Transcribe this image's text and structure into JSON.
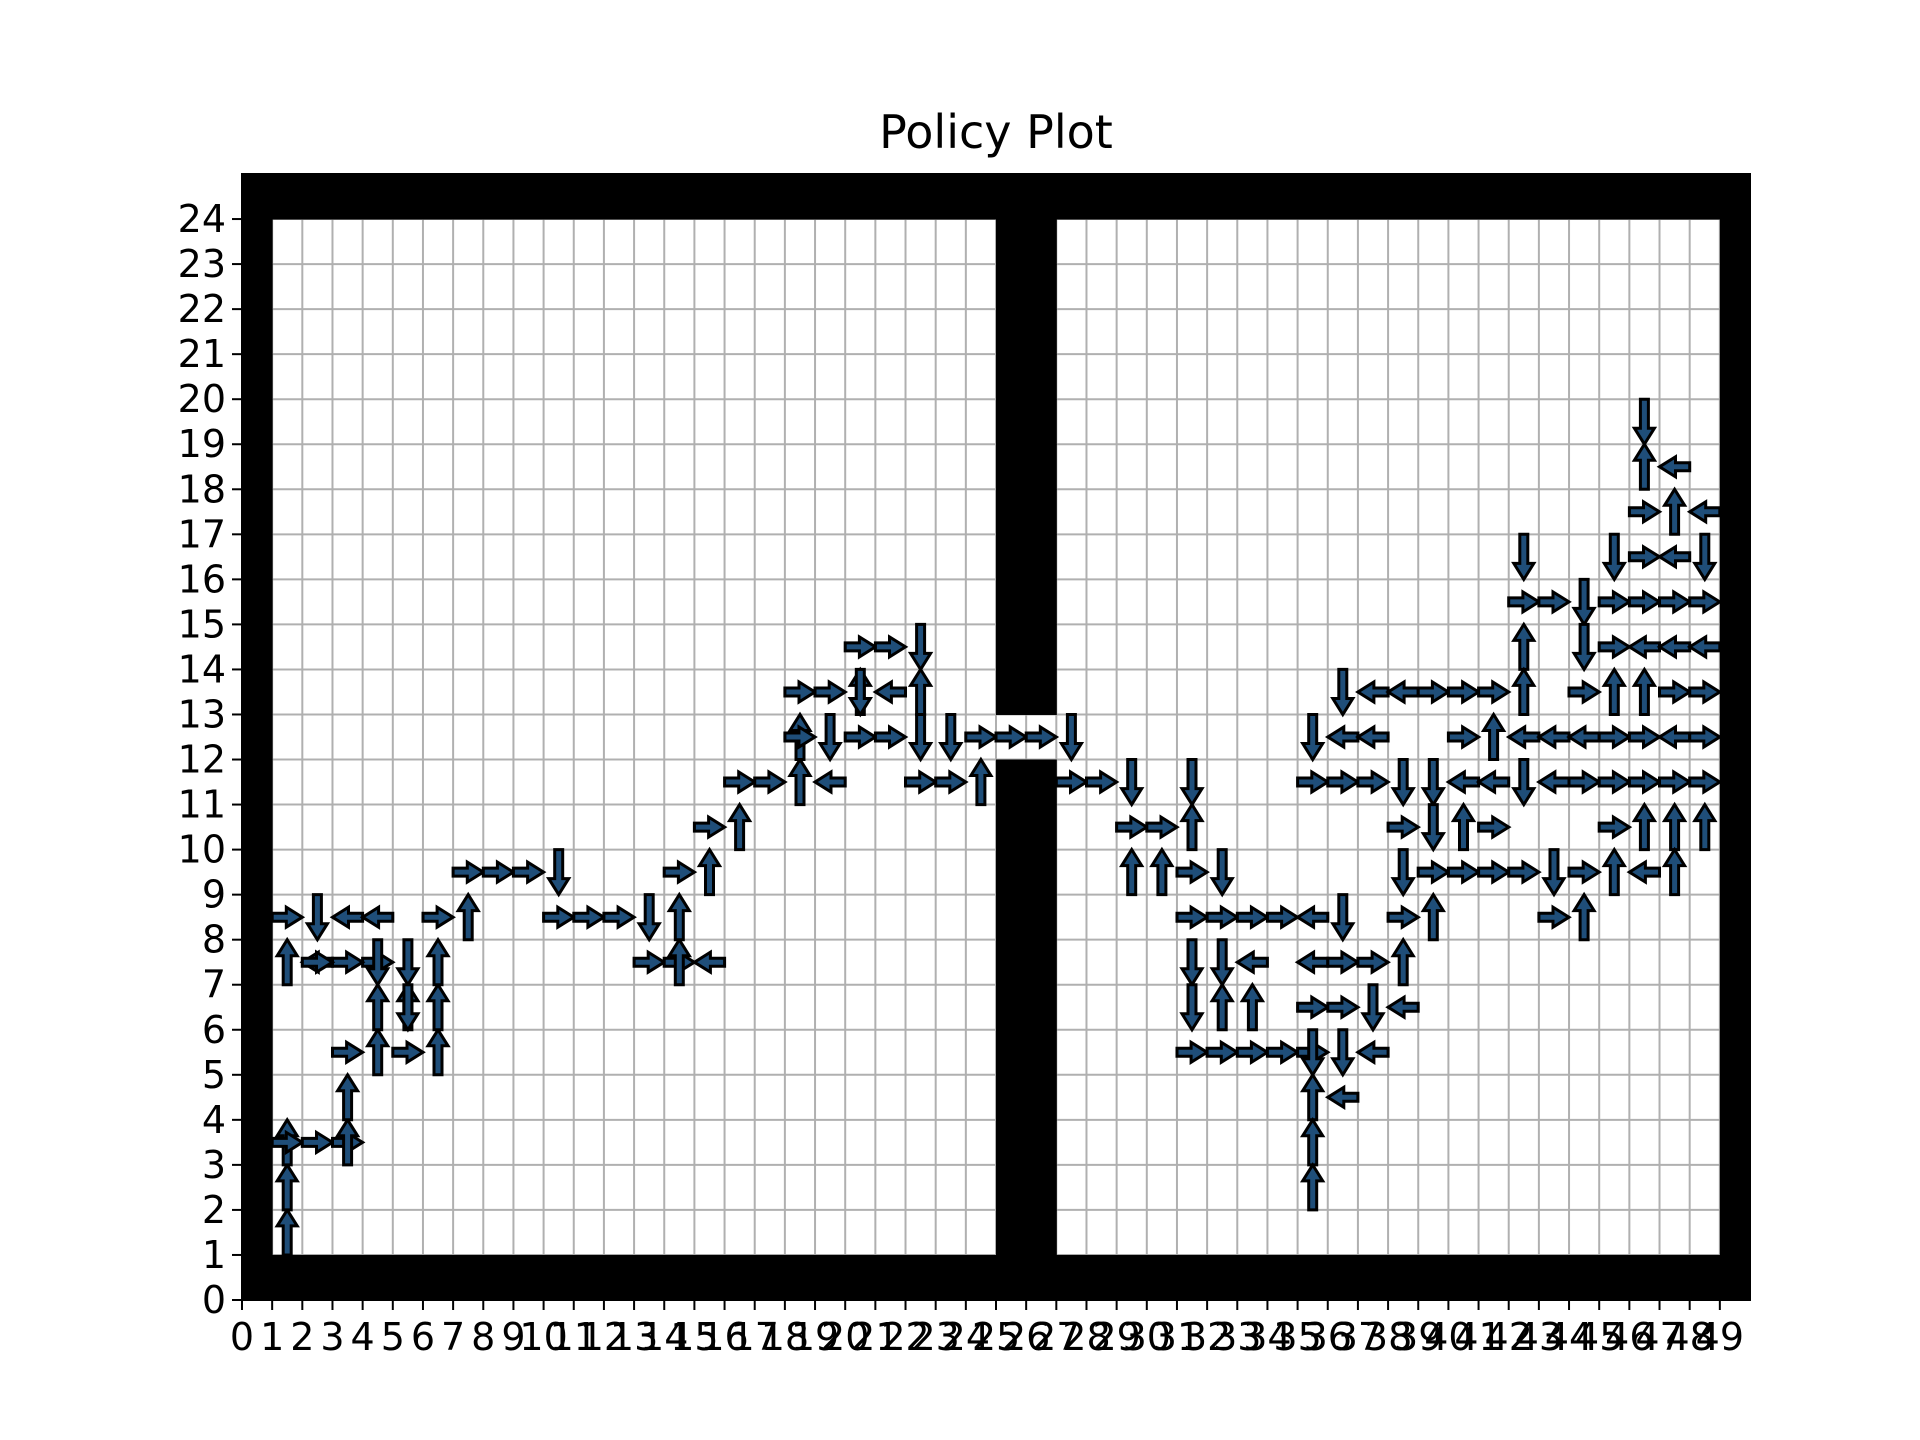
{
  "chart_data": {
    "type": "heatmap",
    "title": "Policy Plot",
    "xlabel": "",
    "ylabel": "",
    "xlim": [
      0,
      50
    ],
    "ylim": [
      0,
      25
    ],
    "x_ticks": [
      "0",
      "1",
      "2",
      "3",
      "4",
      "5",
      "6",
      "7",
      "8",
      "9",
      "10",
      "11",
      "12",
      "13",
      "14",
      "15",
      "16",
      "17",
      "18",
      "19",
      "20",
      "21",
      "22",
      "23",
      "24",
      "25",
      "26",
      "27",
      "28",
      "29",
      "30",
      "31",
      "32",
      "33",
      "34",
      "35",
      "36",
      "37",
      "38",
      "39",
      "40",
      "41",
      "42",
      "43",
      "44",
      "45",
      "46",
      "47",
      "48",
      "49"
    ],
    "y_ticks": [
      "0",
      "1",
      "2",
      "3",
      "4",
      "5",
      "6",
      "7",
      "8",
      "9",
      "10",
      "11",
      "12",
      "13",
      "14",
      "15",
      "16",
      "17",
      "18",
      "19",
      "20",
      "21",
      "22",
      "23",
      "24"
    ],
    "grid": true,
    "walls": {
      "border": true,
      "partition": {
        "x_from": 25,
        "x_to": 27,
        "y_from": 1,
        "y_to": 12,
        "y2_from": 13,
        "y2_to": 24
      }
    },
    "colors": {
      "wall": "#000000",
      "grid": "#b0b0b0",
      "arrow": "#1f4e79",
      "arrow_edge": "#000000"
    },
    "arrows": [
      [
        1,
        1,
        "U"
      ],
      [
        1,
        2,
        "U"
      ],
      [
        1,
        3,
        "U"
      ],
      [
        1,
        3,
        "R"
      ],
      [
        2,
        3,
        "R"
      ],
      [
        3,
        3,
        "R"
      ],
      [
        3,
        3,
        "U"
      ],
      [
        3,
        4,
        "U"
      ],
      [
        3,
        5,
        "R"
      ],
      [
        4,
        5,
        "U"
      ],
      [
        4,
        6,
        "U"
      ],
      [
        4,
        7,
        "R"
      ],
      [
        3,
        7,
        "R"
      ],
      [
        2,
        7,
        "L"
      ],
      [
        2,
        7,
        "R"
      ],
      [
        1,
        7,
        "U"
      ],
      [
        1,
        8,
        "R"
      ],
      [
        2,
        8,
        "D"
      ],
      [
        3,
        8,
        "L"
      ],
      [
        4,
        8,
        "L"
      ],
      [
        4,
        7,
        "D"
      ],
      [
        5,
        7,
        "D"
      ],
      [
        5,
        6,
        "U"
      ],
      [
        5,
        6,
        "D"
      ],
      [
        5,
        5,
        "R"
      ],
      [
        6,
        5,
        "U"
      ],
      [
        6,
        6,
        "U"
      ],
      [
        6,
        7,
        "U"
      ],
      [
        6,
        8,
        "R"
      ],
      [
        7,
        8,
        "U"
      ],
      [
        7,
        9,
        "R"
      ],
      [
        8,
        9,
        "R"
      ],
      [
        9,
        9,
        "R"
      ],
      [
        10,
        9,
        "D"
      ],
      [
        10,
        8,
        "R"
      ],
      [
        11,
        8,
        "R"
      ],
      [
        12,
        8,
        "R"
      ],
      [
        13,
        8,
        "D"
      ],
      [
        13,
        7,
        "R"
      ],
      [
        14,
        7,
        "R"
      ],
      [
        14,
        7,
        "U"
      ],
      [
        15,
        7,
        "L"
      ],
      [
        14,
        8,
        "U"
      ],
      [
        14,
        9,
        "R"
      ],
      [
        15,
        9,
        "U"
      ],
      [
        15,
        10,
        "R"
      ],
      [
        16,
        10,
        "U"
      ],
      [
        16,
        11,
        "R"
      ],
      [
        17,
        11,
        "R"
      ],
      [
        18,
        11,
        "U"
      ],
      [
        19,
        11,
        "L"
      ],
      [
        18,
        12,
        "U"
      ],
      [
        18,
        12,
        "R"
      ],
      [
        18,
        13,
        "R"
      ],
      [
        19,
        13,
        "R"
      ],
      [
        19,
        12,
        "D"
      ],
      [
        20,
        12,
        "R"
      ],
      [
        21,
        12,
        "R"
      ],
      [
        20,
        13,
        "U"
      ],
      [
        20,
        13,
        "D"
      ],
      [
        20,
        14,
        "R"
      ],
      [
        21,
        14,
        "R"
      ],
      [
        22,
        14,
        "D"
      ],
      [
        21,
        13,
        "L"
      ],
      [
        22,
        13,
        "U"
      ],
      [
        22,
        12,
        "D"
      ],
      [
        22,
        11,
        "R"
      ],
      [
        23,
        11,
        "R"
      ],
      [
        23,
        12,
        "D"
      ],
      [
        24,
        11,
        "U"
      ],
      [
        24,
        12,
        "R"
      ],
      [
        25,
        12,
        "R"
      ],
      [
        26,
        12,
        "R"
      ],
      [
        27,
        12,
        "D"
      ],
      [
        27,
        11,
        "R"
      ],
      [
        28,
        11,
        "R"
      ],
      [
        29,
        11,
        "D"
      ],
      [
        29,
        10,
        "R"
      ],
      [
        29,
        9,
        "U"
      ],
      [
        30,
        10,
        "R"
      ],
      [
        30,
        9,
        "U"
      ],
      [
        31,
        11,
        "D"
      ],
      [
        31,
        10,
        "U"
      ],
      [
        31,
        9,
        "R"
      ],
      [
        32,
        9,
        "D"
      ],
      [
        31,
        8,
        "R"
      ],
      [
        31,
        7,
        "D"
      ],
      [
        31,
        6,
        "D"
      ],
      [
        31,
        5,
        "R"
      ],
      [
        32,
        8,
        "R"
      ],
      [
        32,
        7,
        "D"
      ],
      [
        32,
        6,
        "U"
      ],
      [
        33,
        8,
        "R"
      ],
      [
        33,
        7,
        "L"
      ],
      [
        33,
        6,
        "U"
      ],
      [
        32,
        5,
        "R"
      ],
      [
        33,
        5,
        "R"
      ],
      [
        34,
        8,
        "R"
      ],
      [
        34,
        5,
        "R"
      ],
      [
        35,
        8,
        "L"
      ],
      [
        35,
        7,
        "L"
      ],
      [
        35,
        6,
        "R"
      ],
      [
        35,
        5,
        "R"
      ],
      [
        35,
        5,
        "D"
      ],
      [
        35,
        4,
        "U"
      ],
      [
        35,
        3,
        "U"
      ],
      [
        35,
        2,
        "U"
      ],
      [
        35,
        12,
        "D"
      ],
      [
        35,
        11,
        "R"
      ],
      [
        36,
        8,
        "D"
      ],
      [
        36,
        7,
        "R"
      ],
      [
        36,
        6,
        "R"
      ],
      [
        36,
        5,
        "D"
      ],
      [
        36,
        4,
        "L"
      ],
      [
        36,
        13,
        "D"
      ],
      [
        36,
        12,
        "L"
      ],
      [
        37,
        12,
        "L"
      ],
      [
        36,
        11,
        "R"
      ],
      [
        37,
        11,
        "R"
      ],
      [
        37,
        7,
        "R"
      ],
      [
        37,
        6,
        "D"
      ],
      [
        37,
        5,
        "L"
      ],
      [
        38,
        7,
        "U"
      ],
      [
        38,
        6,
        "L"
      ],
      [
        38,
        8,
        "R"
      ],
      [
        38,
        10,
        "R"
      ],
      [
        38,
        9,
        "D"
      ],
      [
        38,
        11,
        "D"
      ],
      [
        37,
        13,
        "L"
      ],
      [
        38,
        13,
        "L"
      ],
      [
        39,
        13,
        "R"
      ],
      [
        39,
        11,
        "D"
      ],
      [
        39,
        10,
        "D"
      ],
      [
        39,
        9,
        "R"
      ],
      [
        39,
        8,
        "U"
      ],
      [
        40,
        13,
        "R"
      ],
      [
        40,
        12,
        "R"
      ],
      [
        40,
        11,
        "L"
      ],
      [
        40,
        10,
        "U"
      ],
      [
        40,
        9,
        "R"
      ],
      [
        41,
        13,
        "R"
      ],
      [
        41,
        12,
        "U"
      ],
      [
        41,
        11,
        "L"
      ],
      [
        41,
        10,
        "R"
      ],
      [
        41,
        9,
        "R"
      ],
      [
        42,
        16,
        "D"
      ],
      [
        42,
        15,
        "R"
      ],
      [
        42,
        14,
        "U"
      ],
      [
        42,
        13,
        "U"
      ],
      [
        42,
        12,
        "L"
      ],
      [
        42,
        11,
        "D"
      ],
      [
        42,
        9,
        "R"
      ],
      [
        43,
        15,
        "R"
      ],
      [
        43,
        12,
        "L"
      ],
      [
        43,
        11,
        "L"
      ],
      [
        43,
        9,
        "D"
      ],
      [
        43,
        8,
        "R"
      ],
      [
        44,
        15,
        "D"
      ],
      [
        44,
        14,
        "D"
      ],
      [
        44,
        13,
        "R"
      ],
      [
        44,
        12,
        "L"
      ],
      [
        44,
        11,
        "R"
      ],
      [
        44,
        9,
        "R"
      ],
      [
        44,
        8,
        "U"
      ],
      [
        45,
        16,
        "D"
      ],
      [
        45,
        15,
        "R"
      ],
      [
        45,
        14,
        "R"
      ],
      [
        45,
        13,
        "U"
      ],
      [
        45,
        12,
        "R"
      ],
      [
        45,
        11,
        "R"
      ],
      [
        45,
        10,
        "R"
      ],
      [
        45,
        9,
        "U"
      ],
      [
        46,
        19,
        "D"
      ],
      [
        46,
        18,
        "U"
      ],
      [
        46,
        17,
        "R"
      ],
      [
        46,
        16,
        "R"
      ],
      [
        46,
        15,
        "R"
      ],
      [
        46,
        14,
        "L"
      ],
      [
        46,
        13,
        "U"
      ],
      [
        46,
        12,
        "R"
      ],
      [
        46,
        11,
        "R"
      ],
      [
        46,
        10,
        "U"
      ],
      [
        46,
        9,
        "L"
      ],
      [
        47,
        18,
        "L"
      ],
      [
        47,
        17,
        "U"
      ],
      [
        47,
        16,
        "L"
      ],
      [
        47,
        15,
        "R"
      ],
      [
        47,
        14,
        "L"
      ],
      [
        47,
        13,
        "R"
      ],
      [
        47,
        12,
        "L"
      ],
      [
        47,
        11,
        "R"
      ],
      [
        47,
        10,
        "U"
      ],
      [
        47,
        9,
        "U"
      ],
      [
        48,
        17,
        "L"
      ],
      [
        48,
        16,
        "D"
      ],
      [
        48,
        15,
        "R"
      ],
      [
        48,
        14,
        "L"
      ],
      [
        48,
        13,
        "R"
      ],
      [
        48,
        12,
        "R"
      ],
      [
        48,
        11,
        "R"
      ],
      [
        48,
        10,
        "U"
      ]
    ]
  }
}
